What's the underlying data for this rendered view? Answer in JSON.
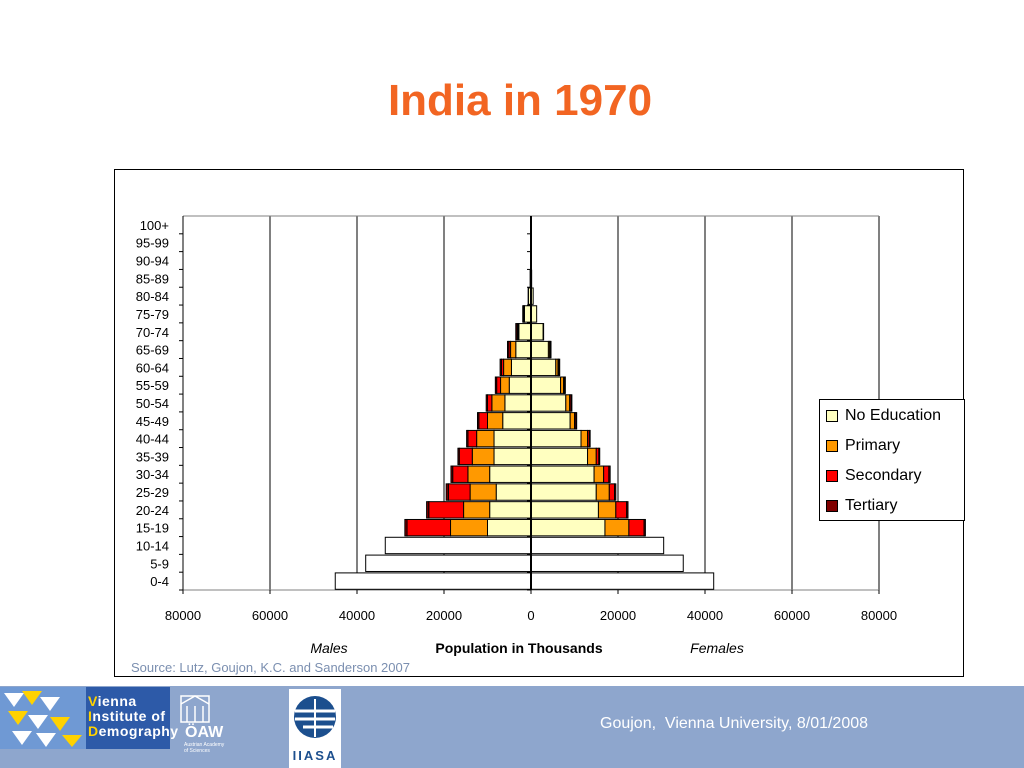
{
  "slide": {
    "title": "India in 1970",
    "source": "Source: Lutz, Goujon, K.C. and Sanderson 2007"
  },
  "footer": {
    "caption": "Goujon,  Vienna University, 8/01/2008",
    "logos": {
      "vid": [
        "V",
        "ienna",
        "I",
        "nstitute of",
        "D",
        "emography"
      ],
      "oaw": "ÖAW",
      "oaw_sub": [
        "Austrian Academy",
        "of Sciences"
      ],
      "iiasa": "IIASA"
    }
  },
  "colors": {
    "title": "#f26522",
    "footer_bar": "#8ea6cd",
    "source_text": "#7b8fb0",
    "no_education": "#ffffc0",
    "primary": "#ff9900",
    "secondary": "#ff0000",
    "tertiary": "#800000",
    "total_only": "#ffffff"
  },
  "chart_data": {
    "type": "bar",
    "subtype": "population-pyramid",
    "orientation": "horizontal",
    "stacked": true,
    "xlabel": "Population in Thousands",
    "left_label": "Males",
    "right_label": "Females",
    "xlim": [
      -80000,
      80000
    ],
    "xticks": [
      -80000,
      -60000,
      -40000,
      -20000,
      0,
      20000,
      40000,
      60000,
      80000
    ],
    "xtick_labels": [
      "80000",
      "60000",
      "40000",
      "20000",
      "0",
      "20000",
      "40000",
      "60000",
      "80000"
    ],
    "grid": "vertical",
    "legend_position": "right",
    "categories": [
      "0-4",
      "5-9",
      "10-14",
      "15-19",
      "20-24",
      "25-29",
      "30-34",
      "35-39",
      "40-44",
      "45-49",
      "50-54",
      "55-59",
      "60-64",
      "65-69",
      "70-74",
      "75-79",
      "80-84",
      "85-89",
      "90-94",
      "95-99",
      "100+"
    ],
    "series": [
      {
        "name": "No Education",
        "males": [
          0,
          0,
          0,
          10000,
          9500,
          8000,
          9500,
          8500,
          8500,
          6500,
          6000,
          5000,
          4500,
          3500,
          2800,
          1500,
          600,
          200,
          80,
          30,
          10
        ],
        "females": [
          0,
          0,
          0,
          17000,
          15500,
          15000,
          14500,
          13000,
          11500,
          9000,
          8000,
          6800,
          5700,
          4000,
          2800,
          1300,
          500,
          150,
          50,
          20,
          10
        ]
      },
      {
        "name": "Primary",
        "males": [
          0,
          0,
          0,
          8500,
          6000,
          6000,
          5000,
          5000,
          4000,
          3500,
          3000,
          2000,
          1800,
          1200,
          200,
          100,
          50,
          0,
          0,
          0,
          0
        ],
        "females": [
          0,
          0,
          0,
          5500,
          4000,
          3000,
          2200,
          2000,
          1500,
          1000,
          900,
          700,
          500,
          300,
          100,
          0,
          0,
          0,
          0,
          0,
          0
        ]
      },
      {
        "name": "Secondary",
        "males": [
          0,
          0,
          0,
          10000,
          8000,
          5000,
          3500,
          3000,
          2000,
          2000,
          1000,
          900,
          500,
          400,
          200,
          100,
          0,
          0,
          0,
          0,
          0
        ],
        "females": [
          0,
          0,
          0,
          3500,
          2500,
          1200,
          1200,
          600,
          400,
          300,
          300,
          200,
          200,
          100,
          0,
          0,
          0,
          0,
          0,
          0,
          0
        ]
      },
      {
        "name": "Tertiary",
        "males": [
          0,
          0,
          0,
          500,
          500,
          500,
          400,
          300,
          300,
          300,
          300,
          300,
          300,
          300,
          300,
          200,
          0,
          0,
          0,
          0,
          0
        ],
        "females": [
          0,
          0,
          0,
          300,
          300,
          300,
          300,
          200,
          200,
          200,
          200,
          200,
          200,
          200,
          0,
          0,
          0,
          0,
          0,
          0,
          0
        ]
      }
    ],
    "totals_without_education": {
      "age_groups": [
        "0-4",
        "5-9",
        "10-14"
      ],
      "males": [
        45000,
        38000,
        33500
      ],
      "females": [
        42000,
        35000,
        30500
      ]
    }
  }
}
